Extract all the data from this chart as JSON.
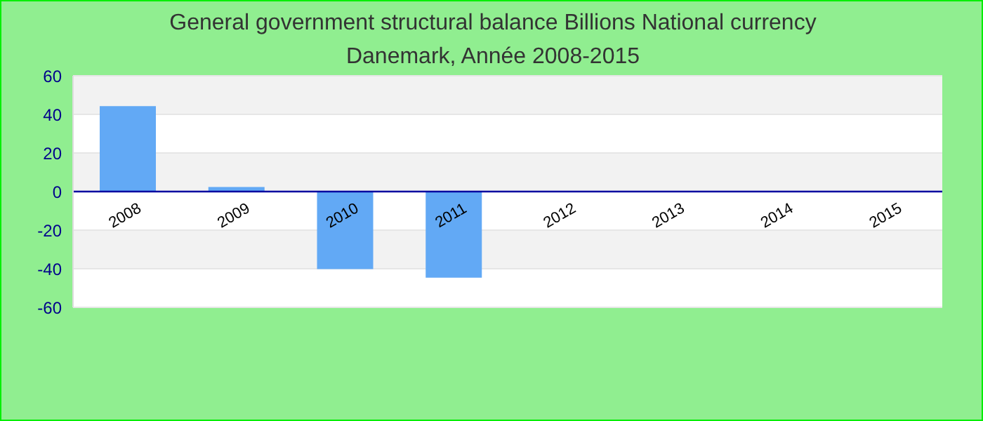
{
  "chart_data": {
    "type": "bar",
    "title": "General government structural balance Billions National currency",
    "subtitle": "Danemark, Année 2008-2015",
    "categories": [
      "2008",
      "2009",
      "2010",
      "2011",
      "2012",
      "2013",
      "2014",
      "2015"
    ],
    "values": [
      44.3,
      2.4,
      -40.2,
      -44.6,
      null,
      null,
      null,
      null
    ],
    "color": "#62a9f5",
    "ylim": [
      -60,
      60
    ],
    "yticks": [
      -60,
      -40,
      -20,
      0,
      20,
      40,
      60
    ],
    "grid": "y"
  }
}
